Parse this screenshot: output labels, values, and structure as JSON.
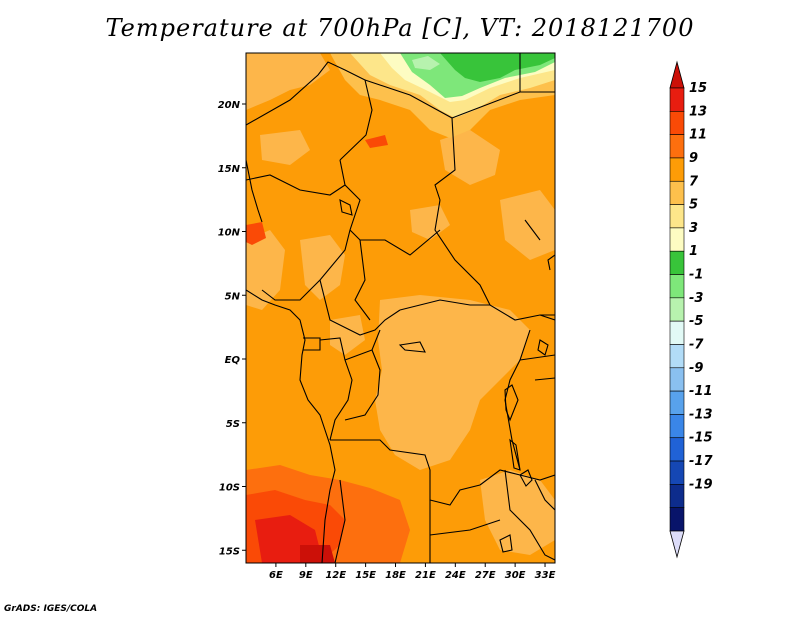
{
  "title": "Temperature at 700hPa [C], VT: 2018121700",
  "credit": "GrADS: IGES/COLA",
  "map": {
    "lon_range": [
      3,
      34
    ],
    "lat_range": [
      -16,
      24
    ],
    "lat_ticks": [
      {
        "value": 20,
        "label": "20N"
      },
      {
        "value": 15,
        "label": "15N"
      },
      {
        "value": 10,
        "label": "10N"
      },
      {
        "value": 5,
        "label": "5N"
      },
      {
        "value": 0,
        "label": "EQ"
      },
      {
        "value": -5,
        "label": "5S"
      },
      {
        "value": -10,
        "label": "10S"
      },
      {
        "value": -15,
        "label": "15S"
      }
    ],
    "lon_ticks": [
      {
        "value": 6,
        "label": "6E"
      },
      {
        "value": 9,
        "label": "9E"
      },
      {
        "value": 12,
        "label": "12E"
      },
      {
        "value": 15,
        "label": "15E"
      },
      {
        "value": 18,
        "label": "18E"
      },
      {
        "value": 21,
        "label": "21E"
      },
      {
        "value": 24,
        "label": "24E"
      },
      {
        "value": 27,
        "label": "27E"
      },
      {
        "value": 30,
        "label": "30E"
      },
      {
        "value": 33,
        "label": "33E"
      }
    ]
  },
  "colorbar": {
    "labels": [
      "15",
      "13",
      "11",
      "9",
      "7",
      "5",
      "3",
      "1",
      "-1",
      "-3",
      "-5",
      "-7",
      "-9",
      "-11",
      "-13",
      "-15",
      "-17",
      "-19"
    ],
    "colors": [
      "#e81d10",
      "#fa4a06",
      "#fd6f0e",
      "#fd9c07",
      "#fdc04c",
      "#fde68a",
      "#fdfcc2",
      "#38c43a",
      "#7ee77a",
      "#b7f2ae",
      "#e2faf6",
      "#b2dcf7",
      "#8ac0f0",
      "#58a2ec",
      "#3a86e8",
      "#2062d6",
      "#1547b4",
      "#0d2c8c",
      "#08146a"
    ],
    "top_arrow_color": "#cc1008",
    "bottom_arrow_color": "#dcdcf8"
  }
}
